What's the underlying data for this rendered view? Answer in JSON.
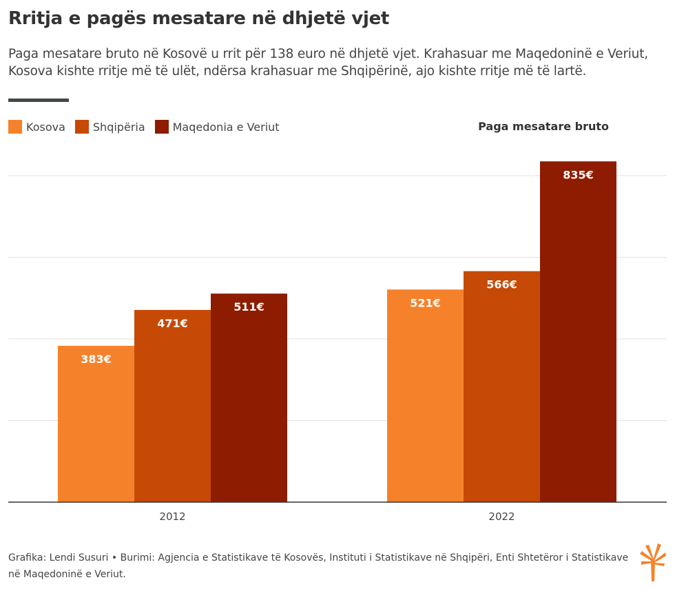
{
  "header": {
    "title": "Rritja e pagës mesatare në dhjetë vjet",
    "subtitle": "Paga mesatare bruto në Kosovë u rrit për 138 euro në dhjetë vjet. Krahasuar me Maqedoninë e Veriut, Kosova kishte rritje më të ulët, ndërsa krahasuar me Shqipërinë, ajo kishte rritje më të lartë."
  },
  "legend": [
    {
      "label": "Kosova",
      "color": "#f5822a"
    },
    {
      "label": "Shqipëria",
      "color": "#c64a06"
    },
    {
      "label": "Maqedonia e Veriut",
      "color": "#8e1c00"
    }
  ],
  "chart_data": {
    "type": "bar",
    "title": "Paga mesatare bruto",
    "categories": [
      "2012",
      "2022"
    ],
    "series": [
      {
        "name": "Kosova",
        "values": [
          383,
          521
        ],
        "labels": [
          "383€",
          "521€"
        ]
      },
      {
        "name": "Shqipëria",
        "values": [
          471,
          566
        ],
        "labels": [
          "471€",
          "566€"
        ]
      },
      {
        "name": "Maqedonia e Veriut",
        "values": [
          511,
          835
        ],
        "labels": [
          "511€",
          "835€"
        ]
      }
    ],
    "ylim": [
      0,
      1000
    ],
    "gridlines": [
      200,
      400,
      600,
      800
    ],
    "xlabel": "",
    "ylabel": ""
  },
  "footer": {
    "credit": "Grafika: Lendi Susuri • Burimi: Agjencia e Statistikave të Kosovës, Instituti i Statistikave në Shqipëri, Enti Shtetëror i Statistikave në Maqedoninë e Veriut."
  }
}
